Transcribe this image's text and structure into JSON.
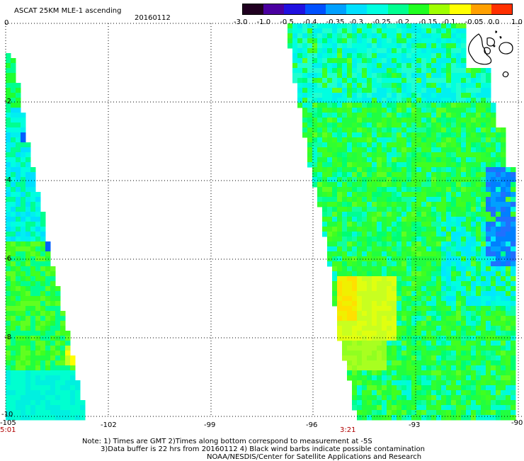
{
  "header": {
    "title": "ASCAT 25KM MLE-1 ascending",
    "date": "20160112"
  },
  "colorbar": {
    "tick_labels": [
      "-3.0",
      "-1.0",
      "-0.5",
      "-0.4",
      "-0.35",
      "-0.3",
      "-0.25",
      "-0.2",
      "-0.15",
      "-0.1",
      "-0.05",
      "0.0",
      "1.0"
    ],
    "colors": [
      "#200020",
      "#4a00a0",
      "#2010e0",
      "#0050ff",
      "#00a0ff",
      "#00e0ff",
      "#00ffe0",
      "#00ff90",
      "#20ff20",
      "#a0ff00",
      "#ffff00",
      "#ffa000",
      "#ff3000"
    ]
  },
  "axes": {
    "y_labels": [
      "0",
      "-2",
      "-4",
      "-6",
      "-8",
      "-10"
    ],
    "x_labels": [
      "-105",
      "-102",
      "-99",
      "-96",
      "-93",
      "-90"
    ],
    "time_labels": [
      "5:01",
      "3:21"
    ]
  },
  "footer": {
    "note_line1": "Note: 1) Times are GMT 2)Times along bottom correspond to measurement at -5S",
    "note_line2": "3)Data buffer is 22 hrs from 20160112 4) Black wind barbs indicate possible contamination",
    "credit": "NOAA/NESDIS/Center for Satellite Applications and Research"
  }
}
